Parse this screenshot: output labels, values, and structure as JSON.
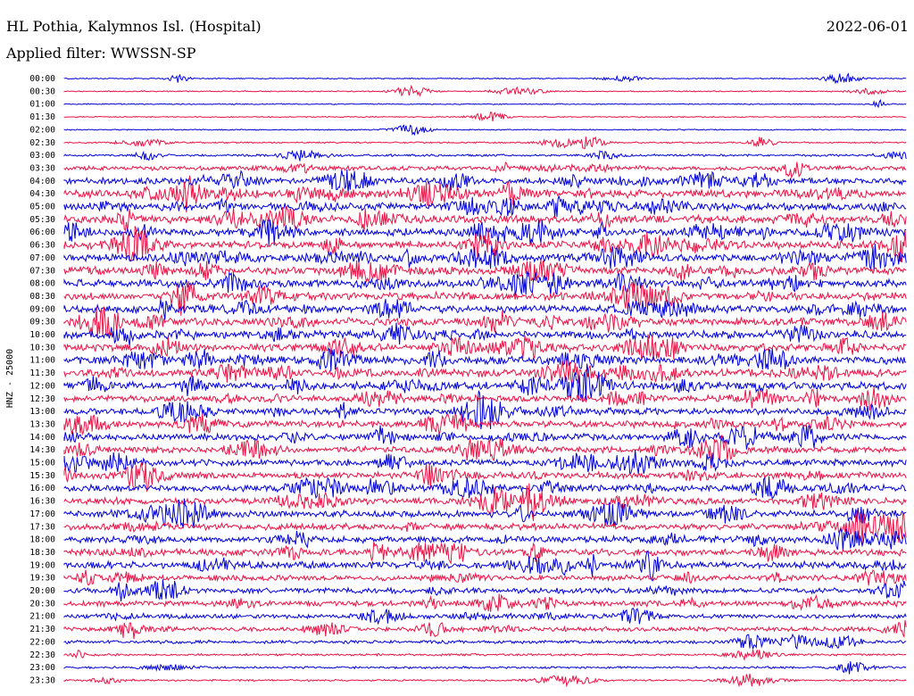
{
  "header": {
    "title": "HL Pothia, Kalymnos Isl. (Hospital)",
    "date": "2022-06-01",
    "filter": "Applied filter: WWSSN-SP"
  },
  "chart_data": {
    "type": "line",
    "ylabel": "HNZ - 25000",
    "rows": [
      "00:00",
      "00:30",
      "01:00",
      "01:30",
      "02:00",
      "02:30",
      "03:00",
      "03:30",
      "04:00",
      "04:30",
      "05:00",
      "05:30",
      "06:00",
      "06:30",
      "07:00",
      "07:30",
      "08:00",
      "08:30",
      "09:00",
      "09:30",
      "10:00",
      "10:30",
      "11:00",
      "11:30",
      "12:00",
      "12:30",
      "13:00",
      "13:30",
      "14:00",
      "14:30",
      "15:00",
      "15:30",
      "16:00",
      "16:30",
      "17:00",
      "17:30",
      "18:00",
      "18:30",
      "19:00",
      "19:30",
      "20:00",
      "20:30",
      "21:00",
      "21:30",
      "22:00",
      "22:30",
      "23:00",
      "23:30"
    ],
    "colors": [
      "#0000e0",
      "#ee1144"
    ],
    "noise_level": [
      0.5,
      0.5,
      0.5,
      0.5,
      0.5,
      0.7,
      1,
      2,
      3,
      3.5,
      3.5,
      3.5,
      3.5,
      3.5,
      3.5,
      3.5,
      3.5,
      3.5,
      3.5,
      3.5,
      3.5,
      3.5,
      3.5,
      3.5,
      3.5,
      3,
      3,
      3,
      3,
      3,
      3,
      3,
      3,
      3,
      3,
      3,
      3,
      3,
      3,
      2.5,
      2.5,
      2.5,
      2,
      2,
      1.5,
      1,
      1,
      0.8
    ]
  }
}
